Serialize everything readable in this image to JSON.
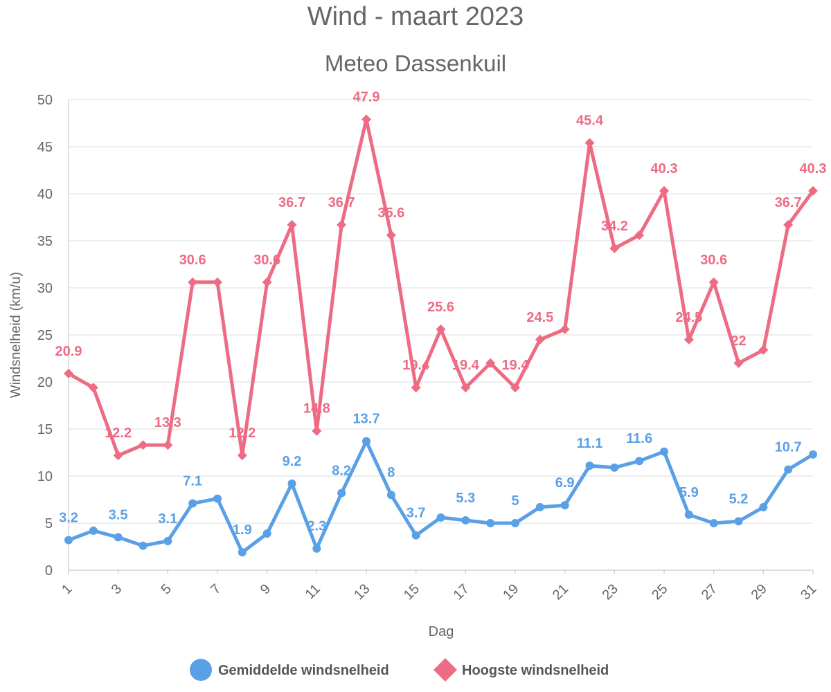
{
  "chart_data": {
    "type": "line",
    "title": "Wind - maart 2023",
    "subtitle": "Meteo Dassenkuil",
    "xlabel": "Dag",
    "ylabel": "Windsnelheid (km/u)",
    "ylim": [
      0,
      50
    ],
    "yticks": [
      "0",
      "5",
      "10",
      "15",
      "20",
      "25",
      "30",
      "35",
      "40",
      "45",
      "50"
    ],
    "xtick_labels": [
      "1",
      "3",
      "5",
      "7",
      "9",
      "11",
      "13",
      "15",
      "17",
      "19",
      "21",
      "23",
      "25",
      "27",
      "29",
      "31"
    ],
    "x": [
      1,
      2,
      3,
      4,
      5,
      6,
      7,
      8,
      9,
      10,
      11,
      12,
      13,
      14,
      15,
      16,
      17,
      18,
      19,
      20,
      21,
      22,
      23,
      24,
      25,
      26,
      27,
      28,
      29,
      30,
      31
    ],
    "grid": true,
    "legend": "bottom-center",
    "series": [
      {
        "name": "Gemiddelde windsnelheid",
        "color": "#5aa0e6",
        "marker": "circle",
        "values": [
          3.2,
          4.2,
          3.5,
          2.6,
          3.1,
          7.1,
          7.6,
          1.9,
          3.9,
          9.2,
          2.3,
          8.2,
          13.7,
          8,
          3.7,
          5.6,
          5.3,
          5,
          5,
          6.7,
          6.9,
          11.1,
          10.9,
          11.6,
          12.6,
          5.9,
          5,
          5.2,
          6.7,
          10.7,
          12.3
        ],
        "labels": [
          "3.2",
          "",
          "3.5",
          "",
          "3.1",
          "7.1",
          "",
          "1.9",
          "",
          "9.2",
          "2.3",
          "8.2",
          "13.7",
          "8",
          "3.7",
          "",
          "5.3",
          "",
          "5",
          "",
          "6.9",
          "11.1",
          "",
          "11.6",
          "",
          "5.9",
          "",
          "5.2",
          "",
          "10.7",
          ""
        ]
      },
      {
        "name": "Hoogste windsnelheid",
        "color": "#ee6b84",
        "marker": "diamond",
        "values": [
          20.9,
          19.4,
          12.2,
          13.3,
          13.3,
          30.6,
          30.6,
          12.2,
          30.6,
          36.7,
          14.8,
          36.7,
          47.9,
          35.6,
          19.4,
          25.6,
          19.4,
          22,
          19.4,
          24.5,
          25.6,
          45.4,
          34.2,
          35.6,
          40.3,
          24.5,
          30.6,
          22,
          23.4,
          36.7,
          40.3
        ],
        "labels": [
          "20.9",
          "",
          "12.2",
          "",
          "13.3",
          "30.6",
          "",
          "12.2",
          "30.6",
          "36.7",
          "14.8",
          "36.7",
          "47.9",
          "35.6",
          "19.4",
          "25.6",
          "19.4",
          "",
          "19.4",
          "24.5",
          "",
          "45.4",
          "34.2",
          "",
          "40.3",
          "24.5",
          "30.6",
          "22",
          "",
          "36.7",
          "40.3"
        ]
      }
    ]
  }
}
